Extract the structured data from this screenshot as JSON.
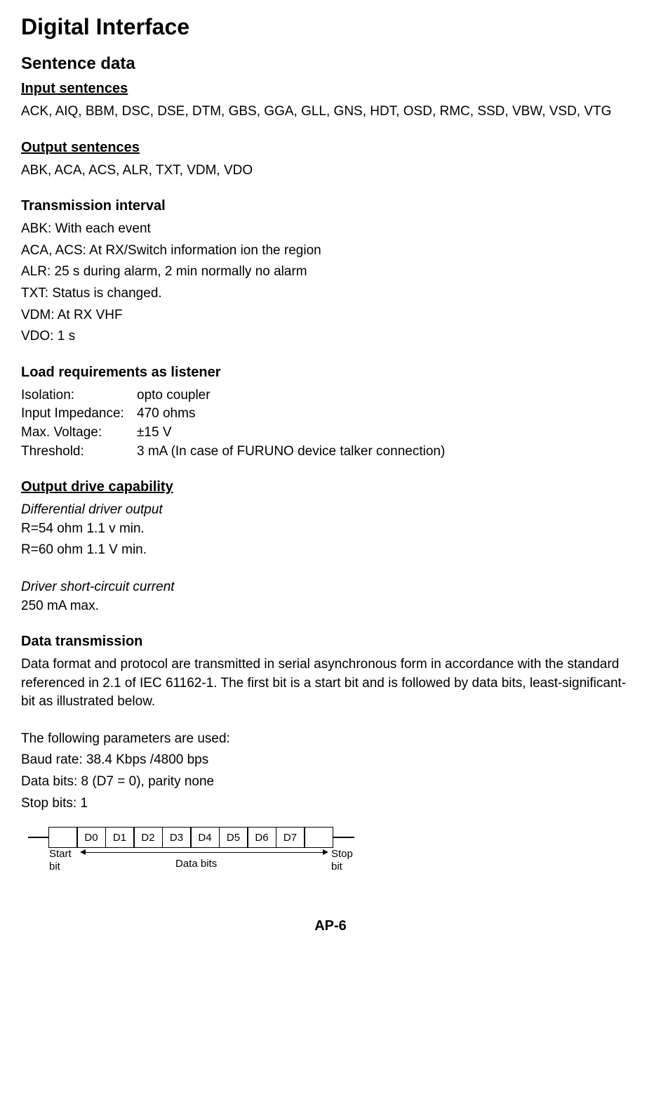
{
  "page_title": "Digital Interface",
  "sentence_data": {
    "title": "Sentence data",
    "input": {
      "title": "Input sentences",
      "content": "ACK, AIQ, BBM, DSC, DSE, DTM, GBS, GGA, GLL, GNS, HDT, OSD, RMC, SSD, VBW, VSD, VTG"
    },
    "output": {
      "title": "Output sentences",
      "content": "ABK, ACA, ACS, ALR, TXT, VDM, VDO"
    }
  },
  "transmission": {
    "title": "Transmission interval",
    "lines": [
      "ABK: With each event",
      "ACA, ACS: At RX/Switch information ion the region",
      "ALR: 25 s during alarm, 2 min normally no alarm",
      "TXT: Status is changed.",
      "VDM: At RX VHF",
      "VDO: 1 s"
    ]
  },
  "load_requirements": {
    "title": "Load requirements as listener",
    "specs": [
      {
        "label": "Isolation:",
        "value": "opto coupler"
      },
      {
        "label": "Input Impedance:",
        "value": "470 ohms"
      },
      {
        "label": "Max. Voltage:",
        "value": "±15 V"
      },
      {
        "label": "Threshold:",
        "value": "3 mA (In case of FURUNO device talker connection)"
      }
    ]
  },
  "output_drive": {
    "title": "Output drive capability",
    "differential": {
      "title": "Differential driver output",
      "lines": [
        "R=54 ohm 1.1 v min.",
        "R=60 ohm 1.1 V min."
      ]
    },
    "short_circuit": {
      "title": "Driver short-circuit current",
      "value": "250 mA max."
    }
  },
  "data_transmission": {
    "title": "Data transmission",
    "paragraph": "Data format and protocol are transmitted in serial asynchronous form in accordance with the standard referenced in 2.1 of IEC 61162-1. The first bit is a start bit and is followed by data bits, least-significant-bit as illustrated below.",
    "params_intro": "The following parameters are used:",
    "params": [
      "Baud rate: 38.4 Kbps /4800 bps",
      "Data bits: 8 (D7 = 0), parity none",
      "Stop bits: 1"
    ]
  },
  "diagram": {
    "bits": [
      "D0",
      "D1",
      "D2",
      "D3",
      "D4",
      "D5",
      "D6",
      "D7"
    ],
    "start_label_1": "Start",
    "start_label_2": "bit",
    "data_bits_label": "Data bits",
    "stop_label_1": "Stop",
    "stop_label_2": "bit"
  },
  "page_number": "AP-6"
}
